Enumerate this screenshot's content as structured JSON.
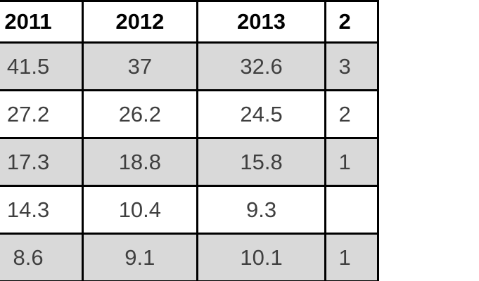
{
  "table": {
    "header": [
      "",
      "2011",
      "2012",
      "2013",
      "2"
    ],
    "rows": [
      [
        "",
        "41.5",
        "37",
        "32.6",
        "3"
      ],
      [
        "",
        "27.2",
        "26.2",
        "24.5",
        "2"
      ],
      [
        "",
        "17.3",
        "18.8",
        "15.8",
        "1"
      ],
      [
        "",
        "14.3",
        "10.4",
        "9.3",
        ""
      ],
      [
        "",
        "8.6",
        "9.1",
        "10.1",
        "1"
      ]
    ]
  },
  "colors": {
    "shaded_row": "#d9d9d9",
    "plain_row": "#ffffff",
    "border": "#000000",
    "header_text": "#000000",
    "cell_text": "#3f3f3f"
  },
  "chart_data": {
    "type": "table",
    "columns": [
      "2011",
      "2012",
      "2013"
    ],
    "rows": [
      [
        41.5,
        37,
        32.6
      ],
      [
        27.2,
        26.2,
        24.5
      ],
      [
        17.3,
        18.8,
        15.8
      ],
      [
        14.3,
        10.4,
        9.3
      ],
      [
        8.6,
        9.1,
        10.1
      ]
    ],
    "layout_notes": "Cropped table screenshot: row-label column cut off at left edge; an additional year column cut off at right edge (header begins with '2'); visible leading digits of that right column per data row: '3', '2', '1', '', '1'; rows alternate gray/white shading starting with gray."
  }
}
